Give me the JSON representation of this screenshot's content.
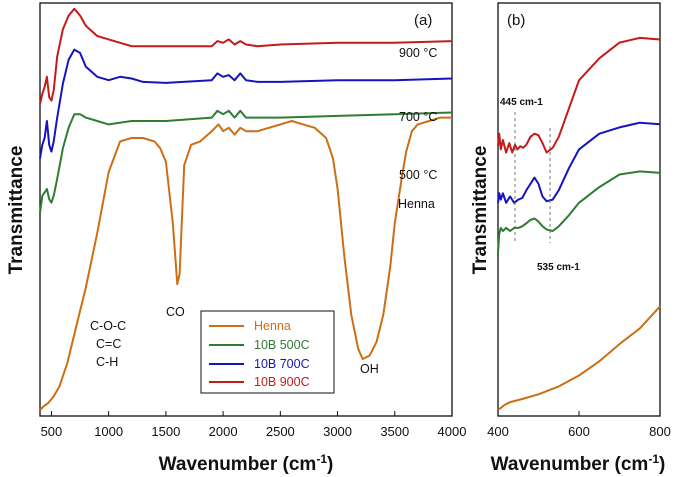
{
  "chart_data": [
    {
      "panel": "(a)",
      "type": "line",
      "xlabel": "Wavenumber (cm-1)",
      "ylabel": "Transmittance",
      "xlim": [
        400,
        4000
      ],
      "xticks": [
        "500",
        "1000",
        "1500",
        "2000",
        "2500",
        "3000",
        "3500",
        "4000"
      ],
      "series": [
        {
          "name": "Henna",
          "color": "#cc6f14",
          "label": "Henna",
          "x": [
            400,
            430,
            470,
            520,
            570,
            640,
            720,
            800,
            900,
            1000,
            1100,
            1200,
            1300,
            1400,
            1450,
            1500,
            1560,
            1600,
            1620,
            1660,
            1720,
            1800,
            1900,
            1960,
            2000,
            2050,
            2100,
            2150,
            2200,
            2300,
            2400,
            2500,
            2600,
            2700,
            2800,
            2900,
            2960,
            3000,
            3060,
            3120,
            3180,
            3220,
            3280,
            3340,
            3400,
            3460,
            3500,
            3560,
            3600,
            3650,
            3700,
            3800,
            3900,
            4000
          ],
          "y": [
            0.0,
            0.01,
            0.02,
            0.04,
            0.07,
            0.14,
            0.25,
            0.36,
            0.52,
            0.7,
            0.79,
            0.8,
            0.8,
            0.79,
            0.77,
            0.73,
            0.55,
            0.37,
            0.4,
            0.72,
            0.78,
            0.79,
            0.82,
            0.84,
            0.82,
            0.83,
            0.81,
            0.83,
            0.82,
            0.82,
            0.83,
            0.84,
            0.85,
            0.84,
            0.83,
            0.8,
            0.74,
            0.65,
            0.45,
            0.28,
            0.18,
            0.15,
            0.16,
            0.2,
            0.28,
            0.42,
            0.55,
            0.68,
            0.76,
            0.82,
            0.84,
            0.85,
            0.86,
            0.86
          ]
        },
        {
          "name": "10B 500C",
          "color": "#2e7d32",
          "label": "500 °C",
          "x": [
            400,
            420,
            440,
            460,
            480,
            500,
            520,
            550,
            600,
            650,
            700,
            750,
            800,
            900,
            1000,
            1200,
            1500,
            1900,
            1950,
            2000,
            2050,
            2100,
            2150,
            2200,
            2300,
            2500,
            3000,
            3500,
            4000
          ],
          "y": [
            0.58,
            0.63,
            0.64,
            0.65,
            0.62,
            0.61,
            0.63,
            0.68,
            0.77,
            0.83,
            0.87,
            0.87,
            0.86,
            0.85,
            0.84,
            0.85,
            0.85,
            0.86,
            0.88,
            0.87,
            0.88,
            0.86,
            0.88,
            0.86,
            0.86,
            0.86,
            0.865,
            0.87,
            0.875
          ]
        },
        {
          "name": "10B 700C",
          "color": "#1515c0",
          "label": "700 °C",
          "x": [
            400,
            420,
            440,
            460,
            480,
            500,
            520,
            550,
            600,
            650,
            700,
            750,
            800,
            900,
            1000,
            1100,
            1200,
            1300,
            1500,
            1900,
            1950,
            2000,
            2050,
            2100,
            2150,
            2200,
            2300,
            2500,
            3000,
            3500,
            4000
          ],
          "y": [
            0.74,
            0.78,
            0.8,
            0.85,
            0.78,
            0.76,
            0.79,
            0.86,
            0.96,
            1.03,
            1.06,
            1.05,
            1.01,
            0.98,
            0.97,
            0.98,
            0.975,
            0.965,
            0.962,
            0.97,
            0.99,
            0.98,
            0.985,
            0.97,
            0.99,
            0.97,
            0.965,
            0.965,
            0.97,
            0.97,
            0.975
          ]
        },
        {
          "name": "10B 900C",
          "color": "#c41a1a",
          "label": "900 °C",
          "x": [
            400,
            420,
            440,
            460,
            480,
            500,
            520,
            550,
            600,
            650,
            700,
            750,
            800,
            900,
            1000,
            1100,
            1200,
            1500,
            1900,
            1950,
            2000,
            2050,
            2100,
            2150,
            2200,
            2300,
            2500,
            3000,
            3500,
            4000
          ],
          "y": [
            0.9,
            0.93,
            0.95,
            0.98,
            0.92,
            0.91,
            0.94,
            1.04,
            1.12,
            1.16,
            1.18,
            1.16,
            1.13,
            1.1,
            1.09,
            1.08,
            1.07,
            1.07,
            1.07,
            1.085,
            1.08,
            1.09,
            1.075,
            1.085,
            1.075,
            1.07,
            1.075,
            1.08,
            1.08,
            1.085
          ]
        }
      ],
      "annotations": [
        "C-O-C",
        "C=C",
        "C-H",
        "CO",
        "OH"
      ],
      "legend": {
        "entries": [
          "Henna",
          "10B 500C",
          "10B 700C",
          "10B 900C"
        ],
        "placement": "bottom-center"
      }
    },
    {
      "panel": "(b)",
      "type": "line",
      "xlabel": "Wavenumber (cm-1)",
      "ylabel": "Transmittance",
      "xlim": [
        400,
        800
      ],
      "xticks": [
        "400",
        "600",
        "800"
      ],
      "series": [
        {
          "name": "Henna",
          "color": "#cc6f14",
          "x": [
            400,
            415,
            430,
            460,
            500,
            550,
            600,
            650,
            700,
            750,
            800
          ],
          "y": [
            0.0,
            0.015,
            0.025,
            0.035,
            0.05,
            0.075,
            0.11,
            0.155,
            0.21,
            0.26,
            0.33
          ]
        },
        {
          "name": "10B 500C",
          "color": "#2e7d32",
          "x": [
            400,
            403,
            407,
            412,
            420,
            430,
            440,
            450,
            460,
            470,
            480,
            490,
            500,
            510,
            520,
            535,
            550,
            575,
            600,
            650,
            700,
            750,
            800
          ],
          "y": [
            0.5,
            0.56,
            0.58,
            0.57,
            0.58,
            0.57,
            0.58,
            0.58,
            0.585,
            0.595,
            0.605,
            0.61,
            0.6,
            0.585,
            0.575,
            0.57,
            0.585,
            0.62,
            0.66,
            0.71,
            0.75,
            0.76,
            0.755
          ]
        },
        {
          "name": "10B 700C",
          "color": "#1515c0",
          "x": [
            400,
            403,
            407,
            412,
            420,
            430,
            440,
            450,
            460,
            470,
            480,
            490,
            500,
            510,
            520,
            535,
            550,
            575,
            600,
            650,
            700,
            750,
            800
          ],
          "y": [
            0.66,
            0.69,
            0.67,
            0.69,
            0.66,
            0.68,
            0.66,
            0.67,
            0.675,
            0.7,
            0.72,
            0.74,
            0.72,
            0.68,
            0.665,
            0.67,
            0.7,
            0.77,
            0.83,
            0.88,
            0.9,
            0.915,
            0.91
          ]
        },
        {
          "name": "10B 900C",
          "color": "#c41a1a",
          "x": [
            400,
            403,
            407,
            412,
            420,
            428,
            435,
            442,
            448,
            455,
            462,
            470,
            480,
            490,
            500,
            510,
            520,
            535,
            550,
            575,
            600,
            650,
            700,
            750,
            800
          ],
          "y": [
            0.84,
            0.88,
            0.83,
            0.86,
            0.82,
            0.85,
            0.82,
            0.845,
            0.83,
            0.84,
            0.835,
            0.845,
            0.87,
            0.88,
            0.875,
            0.85,
            0.82,
            0.835,
            0.87,
            0.96,
            1.05,
            1.12,
            1.17,
            1.185,
            1.18
          ]
        }
      ],
      "annotations": [
        "445 cm-1",
        "535 cm-1"
      ]
    }
  ]
}
